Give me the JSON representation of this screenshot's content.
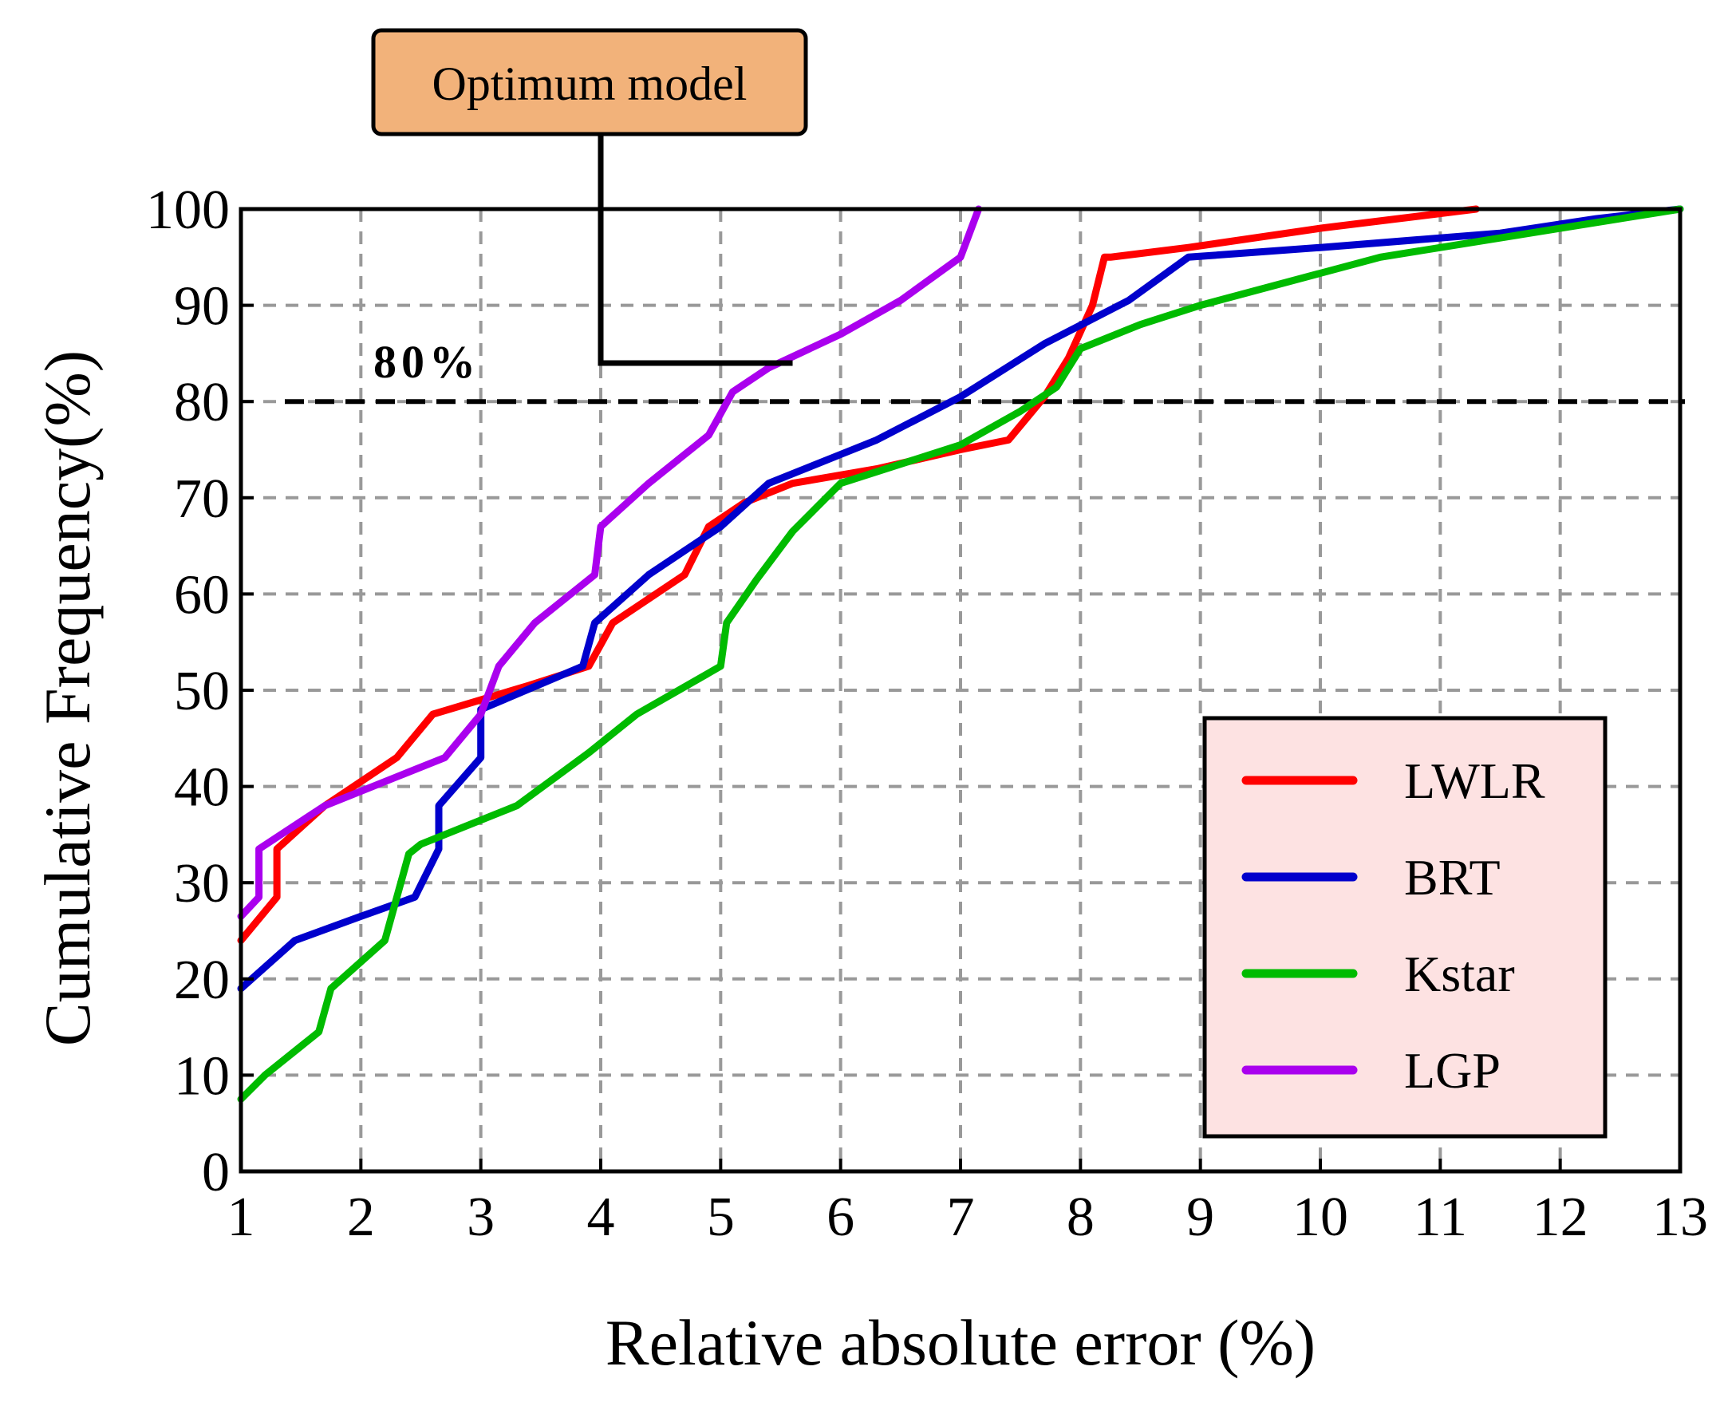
{
  "chart_data": {
    "type": "line",
    "title": "",
    "xlabel": "Relative absolute error (%)",
    "ylabel": "Cumulative Frequency(%)",
    "xlim": [
      1,
      13
    ],
    "ylim": [
      0,
      100
    ],
    "xticks": [
      1,
      2,
      3,
      4,
      5,
      6,
      7,
      8,
      9,
      10,
      11,
      12,
      13
    ],
    "yticks": [
      0,
      10,
      20,
      30,
      40,
      50,
      60,
      70,
      80,
      90,
      100
    ],
    "grid": true,
    "legend_position": "bottom-right",
    "reference_line": {
      "y": 80,
      "label": "80%"
    },
    "callout": {
      "text": "Optimum model",
      "points_to_series": "LGP"
    },
    "series": [
      {
        "name": "LWLR",
        "color": "#ff0000",
        "x": [
          1.0,
          1.3,
          1.3,
          1.7,
          2.3,
          2.6,
          3.0,
          3.4,
          3.9,
          4.1,
          4.7,
          4.9,
          5.2,
          5.6,
          6.3,
          7.0,
          7.4,
          7.7,
          7.9,
          8.1,
          8.2,
          8.25,
          8.9,
          10.0,
          11.3
        ],
        "y": [
          24,
          28.5,
          33.5,
          38,
          43,
          47.5,
          49,
          50.5,
          52.5,
          57,
          62,
          67,
          69.5,
          71.5,
          73,
          75,
          76,
          80.5,
          84.5,
          90,
          95,
          95,
          96,
          98,
          100
        ]
      },
      {
        "name": "BRT",
        "color": "#0000cc",
        "x": [
          1.0,
          1.45,
          2.0,
          2.45,
          2.65,
          2.65,
          3.0,
          3.0,
          3.85,
          3.95,
          4.4,
          5.0,
          5.4,
          6.0,
          6.3,
          7.0,
          7.7,
          8.4,
          8.9,
          10.0,
          11.5,
          12.3,
          13.0
        ],
        "y": [
          19,
          24,
          26.5,
          28.5,
          33.5,
          38,
          43,
          48,
          52.5,
          57,
          62,
          67,
          71.5,
          74.5,
          76,
          80.5,
          86,
          90.5,
          95,
          96,
          97.5,
          99,
          100
        ]
      },
      {
        "name": "Kstar",
        "color": "#00bb00",
        "x": [
          1.0,
          1.2,
          1.65,
          1.75,
          2.2,
          2.4,
          2.5,
          3.3,
          3.9,
          4.3,
          5.0,
          5.05,
          5.3,
          5.6,
          6.0,
          7.0,
          7.5,
          7.8,
          8.0,
          8.5,
          9.0,
          10.5,
          12.0,
          13.0
        ],
        "y": [
          7.5,
          10,
          14.5,
          19,
          24,
          33,
          34,
          38,
          43.5,
          47.5,
          52.5,
          57,
          61.5,
          66.5,
          71.5,
          75.5,
          79,
          81.5,
          85.5,
          88,
          90,
          95,
          98,
          100
        ]
      },
      {
        "name": "LGP",
        "color": "#aa00ee",
        "x": [
          1.0,
          1.15,
          1.15,
          1.7,
          2.3,
          2.7,
          3.0,
          3.15,
          3.45,
          3.95,
          4.0,
          4.4,
          4.9,
          5.1,
          5.4,
          6.0,
          6.5,
          7.0,
          7.15
        ],
        "y": [
          26.5,
          28.5,
          33.5,
          38,
          41,
          43,
          47.5,
          52.5,
          57,
          62,
          67,
          71.5,
          76.5,
          81,
          83.5,
          87,
          90.5,
          95,
          100
        ]
      }
    ]
  }
}
